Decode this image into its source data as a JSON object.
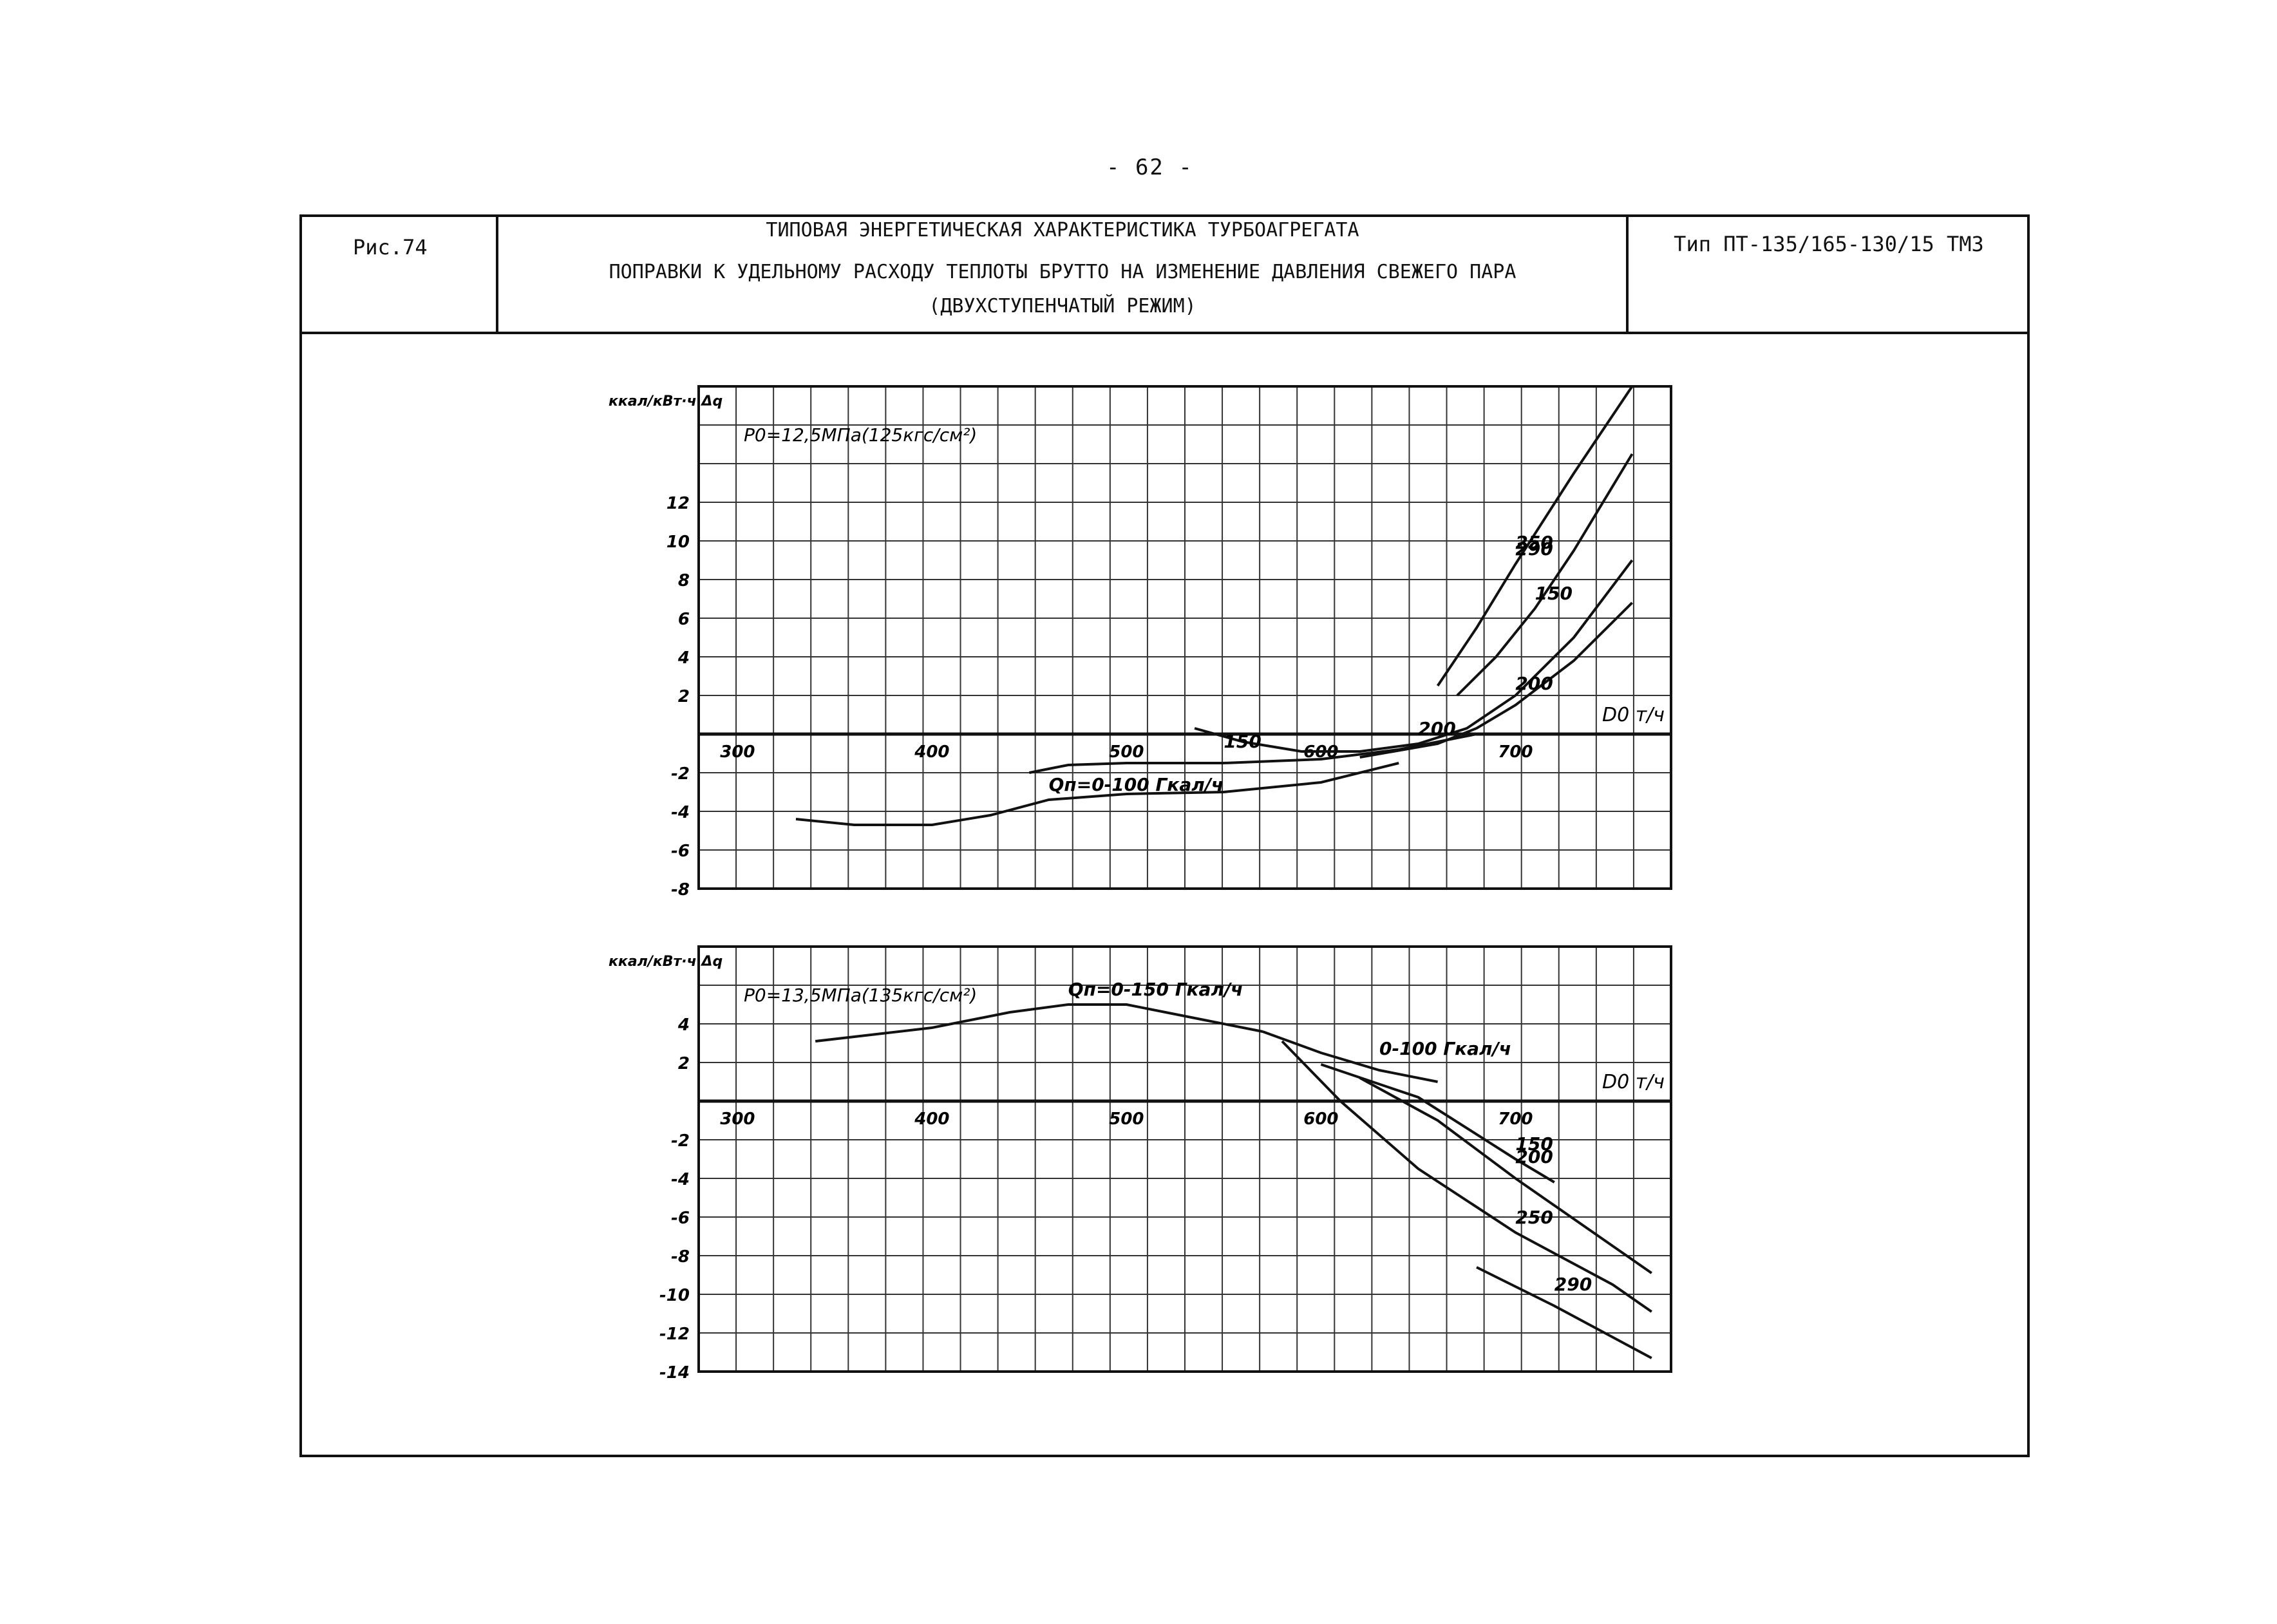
{
  "page_number": "- 62 -",
  "header": {
    "figure": "Рис.74",
    "title_line1": "ТИПОВАЯ ЭНЕРГЕТИЧЕСКАЯ ХАРАКТЕРИСТИКА ТУРБОАГРЕГАТА",
    "title_line2": "ПОПРАВКИ К УДЕЛЬНОМУ РАСХОДУ ТЕПЛОТЫ БРУТТО НА ИЗМЕНЕНИЕ ДАВЛЕНИЯ СВЕЖЕГО ПАРА",
    "title_line3": "(ДВУХСТУПЕНЧАТЫЙ РЕЖИМ)",
    "type": "Тип ПТ-135/165-130/15 ТМЗ"
  },
  "chart_data": [
    {
      "type": "line",
      "title": "P0=12,5МПа(125кгс/см²)",
      "ylabel": "ккал/кВт·ч Δq",
      "xlabel": "D0 т/ч",
      "x_unit": "т/ч",
      "ylim": [
        -8,
        18
      ],
      "xlim": [
        280,
        780
      ],
      "x_ticks": [
        300,
        400,
        500,
        600,
        700
      ],
      "x_tick_labels": [
        "300",
        "400",
        "500",
        "600",
        "700"
      ],
      "y_ticks": [
        12,
        10,
        8,
        6,
        4,
        2,
        -2,
        -4,
        -6,
        -8
      ],
      "grid": true,
      "series": [
        {
          "name": "Qп=0-100 Гкал/ч",
          "x": [
            330,
            360,
            400,
            430,
            460,
            500,
            550,
            600,
            640
          ],
          "y": [
            -4.4,
            -4.7,
            -4.7,
            -4.2,
            -3.4,
            -3.1,
            -3.0,
            -2.5,
            -1.5
          ]
        },
        {
          "name": "150",
          "x": [
            450,
            470,
            500,
            550,
            600,
            640,
            680
          ],
          "y": [
            -2.0,
            -1.6,
            -1.5,
            -1.5,
            -1.3,
            -0.8,
            0.0
          ]
        },
        {
          "name": "200",
          "x": [
            535,
            560,
            590,
            620,
            650,
            675,
            700,
            730,
            760
          ],
          "y": [
            0.3,
            -0.4,
            -0.9,
            -0.9,
            -0.5,
            0.3,
            2.0,
            5.0,
            9.0
          ]
        },
        {
          "name": "150",
          "x": [
            620,
            660,
            680,
            700,
            730,
            760
          ],
          "y": [
            -1.2,
            -0.5,
            0.3,
            1.5,
            3.8,
            6.8
          ]
        },
        {
          "name": "250",
          "x": [
            670,
            690,
            710,
            730,
            760
          ],
          "y": [
            2.0,
            4.0,
            6.5,
            9.5,
            14.5
          ]
        },
        {
          "name": "290",
          "x": [
            660,
            680,
            700,
            730,
            760
          ],
          "y": [
            2.5,
            5.5,
            8.8,
            13.5,
            18.0
          ]
        }
      ],
      "curve_labels": [
        "Qп=0-100 Гкал/ч",
        "150",
        "200",
        "200",
        "150",
        "250",
        "290"
      ]
    },
    {
      "type": "line",
      "title": "P0=13,5МПа(135кгс/см²)",
      "ylabel": "ккал/кВт·ч Δq",
      "xlabel": "D0 т/ч",
      "x_unit": "т/ч",
      "ylim": [
        -14,
        8
      ],
      "xlim": [
        280,
        780
      ],
      "x_ticks": [
        300,
        400,
        500,
        600,
        700
      ],
      "x_tick_labels": [
        "300",
        "400",
        "500",
        "600",
        "700"
      ],
      "y_ticks": [
        4,
        2,
        -2,
        -4,
        -6,
        -8,
        -10,
        -12,
        -14
      ],
      "grid": true,
      "series": [
        {
          "name": "Qп=0-150 Гкал/ч",
          "x": [
            340,
            400,
            440,
            470,
            500,
            540,
            570
          ],
          "y": [
            3.1,
            3.8,
            4.6,
            5.0,
            5.0,
            4.2,
            3.6
          ]
        },
        {
          "name": "0-100",
          "x": [
            570,
            600,
            630,
            660
          ],
          "y": [
            3.6,
            2.5,
            1.6,
            1.0
          ]
        },
        {
          "name": "150",
          "x": [
            600,
            650,
            700,
            720
          ],
          "y": [
            1.9,
            0.2,
            -3.0,
            -4.2
          ]
        },
        {
          "name": "200",
          "x": [
            620,
            660,
            700,
            750,
            770
          ],
          "y": [
            1.2,
            -1.0,
            -4.0,
            -7.5,
            -8.9
          ]
        },
        {
          "name": "250",
          "x": [
            580,
            610,
            650,
            700,
            750,
            770
          ],
          "y": [
            3.1,
            0.0,
            -3.5,
            -6.8,
            -9.5,
            -10.9
          ]
        },
        {
          "name": "290",
          "x": [
            680,
            720,
            770
          ],
          "y": [
            -8.6,
            -10.6,
            -13.3
          ]
        }
      ],
      "curve_labels": [
        "Qп=0-150 Гкал/ч",
        "0-100 Гкал/ч",
        "150",
        "200",
        "250",
        "290"
      ]
    }
  ]
}
